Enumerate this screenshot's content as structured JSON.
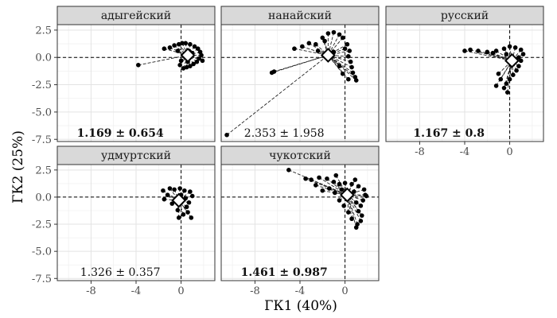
{
  "chart_data": {
    "type": "scatter",
    "xlabel": "ГК1 (40%)",
    "ylabel": "ГК2 (25%)",
    "xlim": [
      -11,
      3
    ],
    "ylim": [
      -7.7,
      3.0
    ],
    "x_ticks": [
      -8,
      -4,
      0
    ],
    "x_tick_labels": [
      "-8",
      "-4",
      "0"
    ],
    "y_ticks": [
      2.5,
      0,
      -2.5,
      -5,
      -7.5
    ],
    "y_tick_labels": [
      "2.5",
      "0.0",
      "-2.5",
      "-5.0",
      "-7.5"
    ],
    "grid": true,
    "reference_lines": {
      "x": 0,
      "y": 0,
      "style": "dashed"
    },
    "panels": [
      {
        "title": "адыгейский",
        "annotation": "1.169 ± 0.654",
        "annotation_bold": true,
        "centroid": [
          0.6,
          0.2
        ],
        "points": [
          [
            -3.8,
            -0.7
          ],
          [
            -1.5,
            0.8
          ],
          [
            -1.0,
            0.9
          ],
          [
            -0.6,
            1.1
          ],
          [
            -0.2,
            1.2
          ],
          [
            0.1,
            1.3
          ],
          [
            0.4,
            1.3
          ],
          [
            0.8,
            1.2
          ],
          [
            1.2,
            1.0
          ],
          [
            1.5,
            0.8
          ],
          [
            1.7,
            0.5
          ],
          [
            1.8,
            0.2
          ],
          [
            1.6,
            -0.1
          ],
          [
            1.4,
            -0.4
          ],
          [
            1.1,
            -0.6
          ],
          [
            0.8,
            -0.8
          ],
          [
            0.5,
            -0.9
          ],
          [
            0.2,
            -1.0
          ],
          [
            -0.1,
            -0.7
          ],
          [
            0.0,
            -0.3
          ],
          [
            0.3,
            0.2
          ],
          [
            0.7,
            0.6
          ],
          [
            1.0,
            0.4
          ],
          [
            0.6,
            -0.4
          ],
          [
            -0.3,
            0.6
          ],
          [
            1.9,
            -0.3
          ]
        ]
      },
      {
        "title": "нанайский",
        "annotation": "2.353 ± 1.958",
        "annotation_bold": false,
        "centroid": [
          -1.5,
          0.2
        ],
        "points": [
          [
            -10.5,
            -7.1
          ],
          [
            -6.5,
            -1.4
          ],
          [
            -6.3,
            -1.3
          ],
          [
            -4.5,
            0.8
          ],
          [
            -3.8,
            1.0
          ],
          [
            -3.2,
            1.3
          ],
          [
            -2.6,
            1.2
          ],
          [
            -2.0,
            1.8
          ],
          [
            -1.5,
            2.2
          ],
          [
            -1.0,
            2.3
          ],
          [
            -0.5,
            2.1
          ],
          [
            -0.2,
            1.8
          ],
          [
            0.2,
            1.2
          ],
          [
            0.4,
            0.6
          ],
          [
            0.3,
            0.1
          ],
          [
            0.5,
            -0.4
          ],
          [
            0.6,
            -0.9
          ],
          [
            0.7,
            -1.4
          ],
          [
            0.9,
            -1.8
          ],
          [
            1.0,
            -2.1
          ],
          [
            0.3,
            -2.0
          ],
          [
            -0.2,
            -1.5
          ],
          [
            -0.5,
            -0.8
          ],
          [
            -1.0,
            0.5
          ],
          [
            -1.8,
            1.5
          ],
          [
            -2.4,
            0.6
          ],
          [
            0.0,
            0.8
          ]
        ]
      },
      {
        "title": "русский",
        "annotation": "1.167 ± 0.8",
        "annotation_bold": true,
        "centroid": [
          0.2,
          -0.3
        ],
        "points": [
          [
            -4.0,
            0.6
          ],
          [
            -3.5,
            0.7
          ],
          [
            -2.8,
            0.6
          ],
          [
            -2.0,
            0.5
          ],
          [
            -1.2,
            0.6
          ],
          [
            -0.5,
            0.8
          ],
          [
            0.0,
            1.0
          ],
          [
            0.5,
            0.9
          ],
          [
            1.0,
            0.7
          ],
          [
            1.2,
            0.3
          ],
          [
            1.0,
            -0.3
          ],
          [
            0.8,
            -0.8
          ],
          [
            0.6,
            -1.2
          ],
          [
            0.3,
            -1.6
          ],
          [
            0.0,
            -2.0
          ],
          [
            -0.3,
            -2.4
          ],
          [
            -0.5,
            -2.8
          ],
          [
            -0.2,
            -3.2
          ],
          [
            -0.8,
            -2.0
          ],
          [
            -1.0,
            -1.5
          ],
          [
            -1.2,
            -2.6
          ],
          [
            0.3,
            -0.5
          ],
          [
            -0.3,
            0.3
          ],
          [
            0.8,
            0.0
          ],
          [
            -1.5,
            0.4
          ]
        ]
      },
      {
        "title": "удмуртский",
        "annotation": "1.326 ± 0.357",
        "annotation_bold": false,
        "centroid": [
          -0.2,
          -0.3
        ],
        "points": [
          [
            -1.6,
            0.6
          ],
          [
            -1.0,
            0.8
          ],
          [
            -0.6,
            0.7
          ],
          [
            -0.1,
            0.8
          ],
          [
            0.3,
            0.6
          ],
          [
            0.8,
            0.5
          ],
          [
            1.0,
            0.1
          ],
          [
            0.7,
            -0.5
          ],
          [
            0.5,
            -0.9
          ],
          [
            0.6,
            -1.4
          ],
          [
            0.9,
            -1.9
          ],
          [
            0.2,
            -1.6
          ],
          [
            -0.2,
            -1.9
          ],
          [
            -0.3,
            -1.2
          ],
          [
            -0.8,
            -0.6
          ],
          [
            -1.2,
            0.2
          ],
          [
            -1.5,
            -0.2
          ],
          [
            0.0,
            0.2
          ],
          [
            0.4,
            -0.1
          ]
        ]
      },
      {
        "title": "чукотский",
        "annotation": "1.461 ± 0.987",
        "annotation_bold": true,
        "centroid": [
          0.2,
          0.2
        ],
        "points": [
          [
            -5.0,
            2.5
          ],
          [
            -3.5,
            1.7
          ],
          [
            -3.0,
            1.6
          ],
          [
            -2.3,
            1.8
          ],
          [
            -1.6,
            1.7
          ],
          [
            -1.0,
            1.4
          ],
          [
            -0.5,
            1.2
          ],
          [
            0.0,
            1.3
          ],
          [
            0.6,
            1.2
          ],
          [
            1.2,
            1.0
          ],
          [
            1.7,
            0.7
          ],
          [
            1.8,
            0.2
          ],
          [
            1.6,
            -0.3
          ],
          [
            1.4,
            -0.8
          ],
          [
            1.2,
            -1.3
          ],
          [
            1.5,
            -1.7
          ],
          [
            1.4,
            -2.2
          ],
          [
            1.1,
            -2.5
          ],
          [
            1.0,
            -2.8
          ],
          [
            0.6,
            -2.0
          ],
          [
            0.3,
            -1.4
          ],
          [
            -0.1,
            -0.8
          ],
          [
            -0.5,
            -0.3
          ],
          [
            -0.9,
            0.4
          ],
          [
            -1.4,
            0.8
          ],
          [
            -2.0,
            0.6
          ],
          [
            -2.6,
            1.1
          ],
          [
            0.8,
            0.5
          ],
          [
            1.0,
            -0.5
          ],
          [
            -0.3,
            0.7
          ],
          [
            1.9,
            0.1
          ],
          [
            0.9,
            1.6
          ],
          [
            -0.8,
            2.0
          ]
        ]
      }
    ]
  }
}
